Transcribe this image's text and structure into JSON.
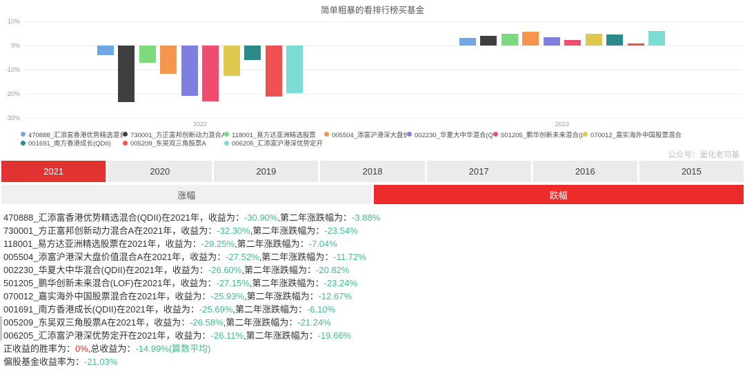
{
  "watermark": "公众号：量化老司基",
  "colors": {
    "selected_tab_red": "#e23333",
    "down_tab_red": "#ee2b2b",
    "negative_green": "#3fbe8e",
    "positive_red": "#e8302e"
  },
  "chart_data": {
    "type": "bar",
    "title": "简单粗暴的看排行榜买基金",
    "categories": [
      "2022",
      "2023"
    ],
    "y_ticks": [
      "10%",
      "0%",
      "-10%",
      "-20%",
      "-30%"
    ],
    "ylim": [
      -30,
      10
    ],
    "grid": true,
    "legend_position": "bottom",
    "series": [
      {
        "name": "470888_汇添富香港优势精选混合(QDII)",
        "color": "#6FA8E3",
        "values": [
          -3.88,
          3.1
        ]
      },
      {
        "name": "730001_方正富邦创新动力混合A",
        "color": "#3F3F3F",
        "values": [
          -23.54,
          3.9
        ]
      },
      {
        "name": "118001_易方达亚洲精选股票",
        "color": "#7CD97C",
        "values": [
          -7.04,
          5.0
        ]
      },
      {
        "name": "005504_添富沪港深大盘价值混合A",
        "color": "#F6954E",
        "values": [
          -11.72,
          5.8
        ]
      },
      {
        "name": "002230_华夏大中华混合(QDII)",
        "color": "#7F7FDF",
        "values": [
          -20.82,
          3.3
        ]
      },
      {
        "name": "501205_鹏华创新未来混合(LOF)",
        "color": "#EE4D6F",
        "values": [
          -23.24,
          2.2
        ]
      },
      {
        "name": "070012_嘉实海外中国股票混合",
        "color": "#DFC84D",
        "values": [
          -12.67,
          4.9
        ]
      },
      {
        "name": "001691_南方香港成长(QDII)",
        "color": "#2B8A8A",
        "values": [
          -6.1,
          4.5
        ]
      },
      {
        "name": "005209_东吴双三角股票A",
        "color": "#EE5250",
        "values": [
          -21.24,
          0.9
        ]
      },
      {
        "name": "006205_汇添富沪港深优势定开",
        "color": "#7BDCD4",
        "values": [
          -19.66,
          6.0
        ]
      }
    ]
  },
  "year_tabs": {
    "selected": "2021",
    "items": [
      "2021",
      "2020",
      "2019",
      "2018",
      "2017",
      "2016",
      "2015"
    ]
  },
  "direction_tabs": {
    "up_label": "涨幅",
    "down_label": "跌幅",
    "selected": "跌幅"
  },
  "report": {
    "lines": [
      {
        "segments": [
          {
            "text": "470888_汇添富香港优势精选混合(QDII)在2021年，收益为：",
            "color": "default"
          },
          {
            "text": "-30.90%",
            "color": "green"
          },
          {
            "text": ",第二年涨跌幅为：",
            "color": "default"
          },
          {
            "text": "-3.88%",
            "color": "green"
          }
        ]
      },
      {
        "segments": [
          {
            "text": "730001_方正富邦创新动力混合A在2021年，收益为：",
            "color": "default"
          },
          {
            "text": "-32.30%",
            "color": "green"
          },
          {
            "text": ",第二年涨跌幅为：",
            "color": "default"
          },
          {
            "text": "-23.54%",
            "color": "green"
          }
        ]
      },
      {
        "segments": [
          {
            "text": "118001_易方达亚洲精选股票在2021年，收益为：",
            "color": "default"
          },
          {
            "text": "-29.25%",
            "color": "green"
          },
          {
            "text": ",第二年涨跌幅为：",
            "color": "default"
          },
          {
            "text": "-7.04%",
            "color": "green"
          }
        ]
      },
      {
        "segments": [
          {
            "text": "005504_添富沪港深大盘价值混合A在2021年，收益为：",
            "color": "default"
          },
          {
            "text": "-27.52%",
            "color": "green"
          },
          {
            "text": ",第二年涨跌幅为：",
            "color": "default"
          },
          {
            "text": "-11.72%",
            "color": "green"
          }
        ]
      },
      {
        "segments": [
          {
            "text": "002230_华夏大中华混合(QDII)在2021年，收益为：",
            "color": "default"
          },
          {
            "text": "-26.60%",
            "color": "green"
          },
          {
            "text": ",第二年涨跌幅为：",
            "color": "default"
          },
          {
            "text": "-20.82%",
            "color": "green"
          }
        ]
      },
      {
        "segments": [
          {
            "text": "501205_鹏华创新未来混合(LOF)在2021年，收益为：",
            "color": "default"
          },
          {
            "text": "-27.15%",
            "color": "green"
          },
          {
            "text": ",第二年涨跌幅为：",
            "color": "default"
          },
          {
            "text": "-23.24%",
            "color": "green"
          }
        ]
      },
      {
        "segments": [
          {
            "text": "070012_嘉实海外中国股票混合在2021年，收益为：",
            "color": "default"
          },
          {
            "text": "-25.93%",
            "color": "green"
          },
          {
            "text": ",第二年涨跌幅为：",
            "color": "default"
          },
          {
            "text": "-12.67%",
            "color": "green"
          }
        ]
      },
      {
        "segments": [
          {
            "text": "001691_南方香港成长(QDII)在2021年，收益为：",
            "color": "default"
          },
          {
            "text": "-25.69%",
            "color": "green"
          },
          {
            "text": ",第二年涨跌幅为：",
            "color": "default"
          },
          {
            "text": "-6.10%",
            "color": "green"
          }
        ]
      },
      {
        "segments": [
          {
            "text": "005209_东吴双三角股票A在2021年，收益为：",
            "color": "default"
          },
          {
            "text": "-26.58%",
            "color": "green"
          },
          {
            "text": ",第二年涨跌幅为：",
            "color": "default"
          },
          {
            "text": "-21.24%",
            "color": "green"
          }
        ]
      },
      {
        "segments": [
          {
            "text": "006205_汇添富沪港深优势定开在2021年，收益为：",
            "color": "default"
          },
          {
            "text": "-26.11%",
            "color": "green"
          },
          {
            "text": ",第二年涨跌幅为：",
            "color": "default"
          },
          {
            "text": "-19.66%",
            "color": "green"
          }
        ]
      },
      {
        "segments": [
          {
            "text": "正收益的胜率为：",
            "color": "default"
          },
          {
            "text": "0%",
            "color": "red"
          },
          {
            "text": ",总收益为：",
            "color": "default"
          },
          {
            "text": "-14.99%(算数平均)",
            "color": "green"
          }
        ]
      },
      {
        "segments": [
          {
            "text": "偏股基金收益率为：",
            "color": "default"
          },
          {
            "text": "-21.03%",
            "color": "green"
          }
        ]
      }
    ]
  }
}
